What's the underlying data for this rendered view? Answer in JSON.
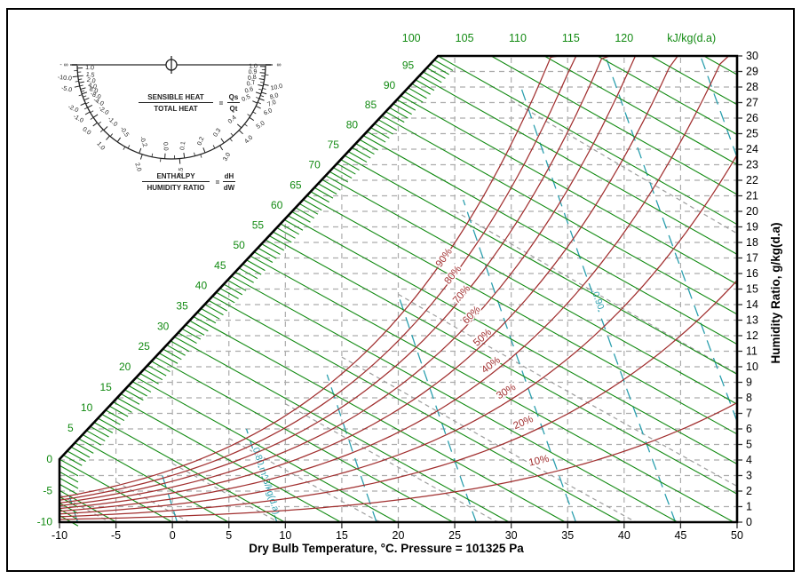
{
  "chart_data": {
    "type": "line",
    "variant": "psychrometric-chart",
    "x_axis": {
      "label": "Dry Bulb Temperature, °C. Pressure = 101325 Pa",
      "min": -10,
      "max": 50,
      "ticks": [
        -10,
        -5,
        0,
        5,
        10,
        15,
        20,
        25,
        30,
        35,
        40,
        45,
        50
      ]
    },
    "y_axis": {
      "label": "Humidity Ratio, g/kg(d.a)",
      "min": 0,
      "max": 30,
      "ticks": [
        0,
        1,
        2,
        3,
        4,
        5,
        6,
        7,
        8,
        9,
        10,
        11,
        12,
        13,
        14,
        15,
        16,
        17,
        18,
        19,
        20,
        21,
        22,
        23,
        24,
        25,
        26,
        27,
        28,
        29,
        30
      ]
    },
    "pressure_pa": 101325,
    "enthalpy": {
      "unit": "kJ/kg(d.a)",
      "min": -10,
      "max": 125,
      "step": 5,
      "minor_step": 1,
      "axis_labels": [
        5,
        10,
        15,
        20,
        25,
        30,
        35,
        40,
        45,
        50,
        55,
        60,
        65,
        70,
        75,
        80,
        85,
        90,
        95
      ],
      "left_labels": [
        0,
        -5,
        -10
      ],
      "top_labels": [
        100,
        105,
        110,
        115,
        120
      ],
      "color": "#128a12"
    },
    "relative_humidity": {
      "color": "#A12F2F",
      "curves_percent": [
        10,
        20,
        30,
        40,
        50,
        60,
        70,
        80,
        90
      ],
      "label_suffix": "%",
      "label_t": {
        "10": 32.3,
        "20": 30.8,
        "30": 29.2,
        "40": 27.8,
        "50": 27.0,
        "60": 26.0,
        "70": 25.1,
        "80": 24.3,
        "90": 23.5
      }
    },
    "wet_bulb": {
      "color": "#9E9E9E",
      "min": -10,
      "max": 30,
      "step": 5
    },
    "specific_volume": {
      "color": "#2B9FAE",
      "values": [
        0.75,
        0.775,
        0.8,
        0.825,
        0.85,
        0.875,
        0.9,
        0.925,
        0.95
      ],
      "labels": [
        {
          "v": 0.8,
          "text": "0.80 m^3/kg(d.a)",
          "W": 2.6
        },
        {
          "v": 0.9,
          "text": "0.90",
          "W": 14.2
        }
      ]
    },
    "grid": {
      "color": "#ACACAC",
      "humidity_step": 1,
      "temp_step": 5
    }
  },
  "protractor": {
    "sensible_total": {
      "num": "SENSIBLE HEAT",
      "den": "TOTAL HEAT",
      "eq": "=",
      "eq_num": "Qs",
      "eq_den": "Qt"
    },
    "enthalpy_ratio": {
      "num": "ENTHALPY",
      "den": "HUMIDITY RATIO",
      "eq": "=",
      "eq_num": "dH",
      "eq_den": "dW"
    },
    "outer_scale": [
      {
        "t": "∞",
        "a": 180
      },
      {
        "t": "10.0",
        "a": 168
      },
      {
        "t": "8.0",
        "a": 163
      },
      {
        "t": "7.0",
        "a": 159
      },
      {
        "t": "6.0",
        "a": 154
      },
      {
        "t": "5.0",
        "a": 146
      },
      {
        "t": "4.0",
        "a": 136
      },
      {
        "t": "3.0",
        "a": 121
      },
      {
        "t": "2.5",
        "a": 95
      },
      {
        "t": "2.0",
        "a": 72
      },
      {
        "t": "1.0",
        "a": 49
      },
      {
        "t": "0.0",
        "a": 38
      },
      {
        "t": "-1.0",
        "a": 30
      },
      {
        "t": "-2.0",
        "a": 24
      },
      {
        "t": "-5.0",
        "a": 13
      },
      {
        "t": "-10.0",
        "a": 7
      },
      {
        "t": "- ∞",
        "a": 0
      }
    ],
    "inner_scale": [
      {
        "t": "1.0",
        "a": 179
      },
      {
        "t": "0.9",
        "a": 175
      },
      {
        "t": "0.8",
        "a": 171
      },
      {
        "t": "0.7",
        "a": 167
      },
      {
        "t": "0.6",
        "a": 162
      },
      {
        "t": "0.5",
        "a": 156
      },
      {
        "t": "0.4",
        "a": 138
      },
      {
        "t": "0.3",
        "a": 124
      },
      {
        "t": "0.2",
        "a": 111
      },
      {
        "t": "0.1",
        "a": 98
      },
      {
        "t": "0.0",
        "a": 86
      },
      {
        "t": "-0.2",
        "a": 70
      },
      {
        "t": "-0.5",
        "a": 55
      },
      {
        "t": "-1.0",
        "a": 44
      },
      {
        "t": "-2.0",
        "a": 34
      },
      {
        "t": "-4.0",
        "a": 27
      },
      {
        "t": "-8.0",
        "a": 22
      },
      {
        "t": "8.0",
        "a": 18
      },
      {
        "t": "4.0",
        "a": 15
      },
      {
        "t": "2.0",
        "a": 11
      },
      {
        "t": "1.5",
        "a": 7
      },
      {
        "t": "1.0",
        "a": 2
      }
    ]
  }
}
